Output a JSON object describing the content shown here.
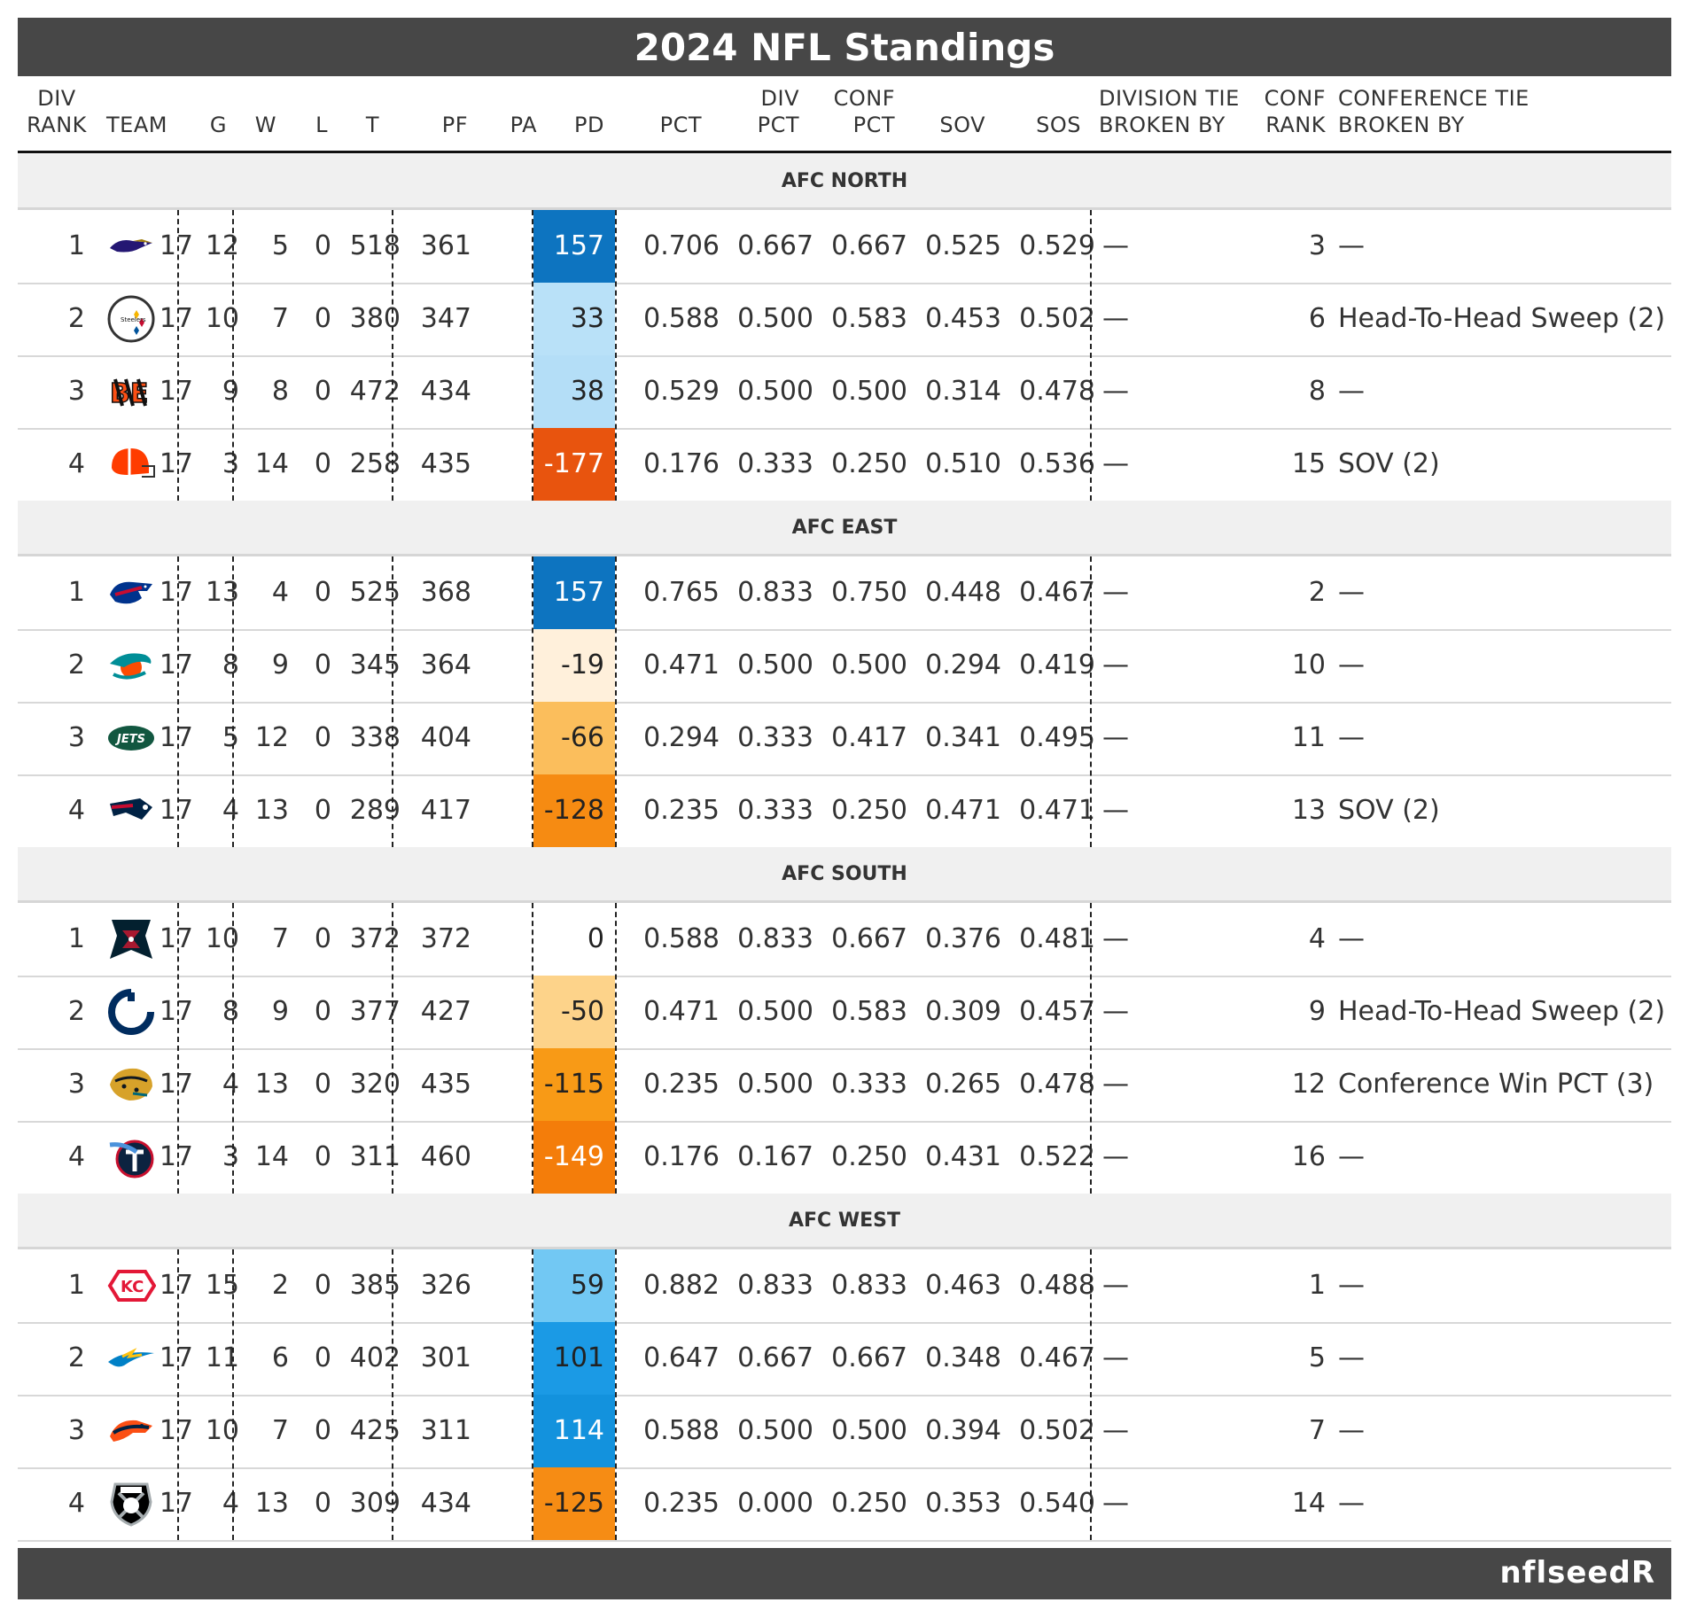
{
  "title": "2024 NFL Standings",
  "brand": "nflseedR",
  "headers": {
    "div_rank": [
      "DIV",
      "RANK"
    ],
    "team": "TEAM",
    "g": "G",
    "w": "W",
    "l": "L",
    "t": "T",
    "pf": "PF",
    "pa": "PA",
    "pd": "PD",
    "pct": "PCT",
    "div_pct": [
      "DIV",
      "PCT"
    ],
    "conf_pct": [
      "CONF",
      "PCT"
    ],
    "sov": "SOV",
    "sos": "SOS",
    "div_tie": [
      "DIVISION TIE",
      "BROKEN BY"
    ],
    "conf_rank": [
      "CONF",
      "RANK"
    ],
    "conf_tie": [
      "CONFERENCE TIE",
      "BROKEN BY"
    ]
  },
  "divisions": [
    {
      "name": "AFC NORTH",
      "teams": [
        {
          "rank": "1",
          "team": "ravens",
          "g": "17",
          "w": "12",
          "l": "5",
          "t": "0",
          "pf": "518",
          "pa": "361",
          "pd": "157",
          "pd_color": "#0d74c0",
          "pd_text": "#ffffff",
          "pct": "0.706",
          "div_pct": "0.667",
          "conf_pct": "0.667",
          "sov": "0.525",
          "sos": "0.529",
          "div_tie": "—",
          "conf_rank": "3",
          "conf_tie": "—"
        },
        {
          "rank": "2",
          "team": "steelers",
          "g": "17",
          "w": "10",
          "l": "7",
          "t": "0",
          "pf": "380",
          "pa": "347",
          "pd": "33",
          "pd_color": "#b9e1f8",
          "pd_text": "#222222",
          "pct": "0.588",
          "div_pct": "0.500",
          "conf_pct": "0.583",
          "sov": "0.453",
          "sos": "0.502",
          "div_tie": "—",
          "conf_rank": "6",
          "conf_tie": "Head-To-Head Sweep (2)"
        },
        {
          "rank": "3",
          "team": "bengals",
          "g": "17",
          "w": "9",
          "l": "8",
          "t": "0",
          "pf": "472",
          "pa": "434",
          "pd": "38",
          "pd_color": "#b4def7",
          "pd_text": "#222222",
          "pct": "0.529",
          "div_pct": "0.500",
          "conf_pct": "0.500",
          "sov": "0.314",
          "sos": "0.478",
          "div_tie": "—",
          "conf_rank": "8",
          "conf_tie": "—"
        },
        {
          "rank": "4",
          "team": "browns",
          "g": "17",
          "w": "3",
          "l": "14",
          "t": "0",
          "pf": "258",
          "pa": "435",
          "pd": "-177",
          "pd_color": "#e8540e",
          "pd_text": "#ffffff",
          "pct": "0.176",
          "div_pct": "0.333",
          "conf_pct": "0.250",
          "sov": "0.510",
          "sos": "0.536",
          "div_tie": "—",
          "conf_rank": "15",
          "conf_tie": "SOV (2)"
        }
      ]
    },
    {
      "name": "AFC EAST",
      "teams": [
        {
          "rank": "1",
          "team": "bills",
          "g": "17",
          "w": "13",
          "l": "4",
          "t": "0",
          "pf": "525",
          "pa": "368",
          "pd": "157",
          "pd_color": "#0d74c0",
          "pd_text": "#ffffff",
          "pct": "0.765",
          "div_pct": "0.833",
          "conf_pct": "0.750",
          "sov": "0.448",
          "sos": "0.467",
          "div_tie": "—",
          "conf_rank": "2",
          "conf_tie": "—"
        },
        {
          "rank": "2",
          "team": "dolphins",
          "g": "17",
          "w": "8",
          "l": "9",
          "t": "0",
          "pf": "345",
          "pa": "364",
          "pd": "-19",
          "pd_color": "#fff0db",
          "pd_text": "#222222",
          "pct": "0.471",
          "div_pct": "0.500",
          "conf_pct": "0.500",
          "sov": "0.294",
          "sos": "0.419",
          "div_tie": "—",
          "conf_rank": "10",
          "conf_tie": "—"
        },
        {
          "rank": "3",
          "team": "jets",
          "g": "17",
          "w": "5",
          "l": "12",
          "t": "0",
          "pf": "338",
          "pa": "404",
          "pd": "-66",
          "pd_color": "#fbbe5c",
          "pd_text": "#222222",
          "pct": "0.294",
          "div_pct": "0.333",
          "conf_pct": "0.417",
          "sov": "0.341",
          "sos": "0.495",
          "div_tie": "—",
          "conf_rank": "11",
          "conf_tie": "—"
        },
        {
          "rank": "4",
          "team": "patriots",
          "g": "17",
          "w": "4",
          "l": "13",
          "t": "0",
          "pf": "289",
          "pa": "417",
          "pd": "-128",
          "pd_color": "#f68b12",
          "pd_text": "#222222",
          "pct": "0.235",
          "div_pct": "0.333",
          "conf_pct": "0.250",
          "sov": "0.471",
          "sos": "0.471",
          "div_tie": "—",
          "conf_rank": "13",
          "conf_tie": "SOV (2)"
        }
      ]
    },
    {
      "name": "AFC SOUTH",
      "teams": [
        {
          "rank": "1",
          "team": "texans",
          "g": "17",
          "w": "10",
          "l": "7",
          "t": "0",
          "pf": "372",
          "pa": "372",
          "pd": "0",
          "pd_color": "#ffffff",
          "pd_text": "#222222",
          "pct": "0.588",
          "div_pct": "0.833",
          "conf_pct": "0.667",
          "sov": "0.376",
          "sos": "0.481",
          "div_tie": "—",
          "conf_rank": "4",
          "conf_tie": "—"
        },
        {
          "rank": "2",
          "team": "colts",
          "g": "17",
          "w": "8",
          "l": "9",
          "t": "0",
          "pf": "377",
          "pa": "427",
          "pd": "-50",
          "pd_color": "#fdd38a",
          "pd_text": "#222222",
          "pct": "0.471",
          "div_pct": "0.500",
          "conf_pct": "0.583",
          "sov": "0.309",
          "sos": "0.457",
          "div_tie": "—",
          "conf_rank": "9",
          "conf_tie": "Head-To-Head Sweep (2)"
        },
        {
          "rank": "3",
          "team": "jaguars",
          "g": "17",
          "w": "4",
          "l": "13",
          "t": "0",
          "pf": "320",
          "pa": "435",
          "pd": "-115",
          "pd_color": "#f89a16",
          "pd_text": "#222222",
          "pct": "0.235",
          "div_pct": "0.500",
          "conf_pct": "0.333",
          "sov": "0.265",
          "sos": "0.478",
          "div_tie": "—",
          "conf_rank": "12",
          "conf_tie": "Conference Win PCT (3)"
        },
        {
          "rank": "4",
          "team": "titans",
          "g": "17",
          "w": "3",
          "l": "14",
          "t": "0",
          "pf": "311",
          "pa": "460",
          "pd": "-149",
          "pd_color": "#f47d0a",
          "pd_text": "#ffffff",
          "pct": "0.176",
          "div_pct": "0.167",
          "conf_pct": "0.250",
          "sov": "0.431",
          "sos": "0.522",
          "div_tie": "—",
          "conf_rank": "16",
          "conf_tie": "—"
        }
      ]
    },
    {
      "name": "AFC WEST",
      "teams": [
        {
          "rank": "1",
          "team": "chiefs",
          "g": "17",
          "w": "15",
          "l": "2",
          "t": "0",
          "pf": "385",
          "pa": "326",
          "pd": "59",
          "pd_color": "#72c8f3",
          "pd_text": "#222222",
          "pct": "0.882",
          "div_pct": "0.833",
          "conf_pct": "0.833",
          "sov": "0.463",
          "sos": "0.488",
          "div_tie": "—",
          "conf_rank": "1",
          "conf_tie": "—"
        },
        {
          "rank": "2",
          "team": "chargers",
          "g": "17",
          "w": "11",
          "l": "6",
          "t": "0",
          "pf": "402",
          "pa": "301",
          "pd": "101",
          "pd_color": "#1b9ae5",
          "pd_text": "#222222",
          "pct": "0.647",
          "div_pct": "0.667",
          "conf_pct": "0.667",
          "sov": "0.348",
          "sos": "0.467",
          "div_tie": "—",
          "conf_rank": "5",
          "conf_tie": "—"
        },
        {
          "rank": "3",
          "team": "broncos",
          "g": "17",
          "w": "10",
          "l": "7",
          "t": "0",
          "pf": "425",
          "pa": "311",
          "pd": "114",
          "pd_color": "#1392dd",
          "pd_text": "#ffffff",
          "pct": "0.588",
          "div_pct": "0.500",
          "conf_pct": "0.500",
          "sov": "0.394",
          "sos": "0.502",
          "div_tie": "—",
          "conf_rank": "7",
          "conf_tie": "—"
        },
        {
          "rank": "4",
          "team": "raiders",
          "g": "17",
          "w": "4",
          "l": "13",
          "t": "0",
          "pf": "309",
          "pa": "434",
          "pd": "-125",
          "pd_color": "#f68c14",
          "pd_text": "#222222",
          "pct": "0.235",
          "div_pct": "0.000",
          "conf_pct": "0.250",
          "sov": "0.353",
          "sos": "0.540",
          "div_tie": "—",
          "conf_rank": "14",
          "conf_tie": "—"
        }
      ]
    }
  ]
}
